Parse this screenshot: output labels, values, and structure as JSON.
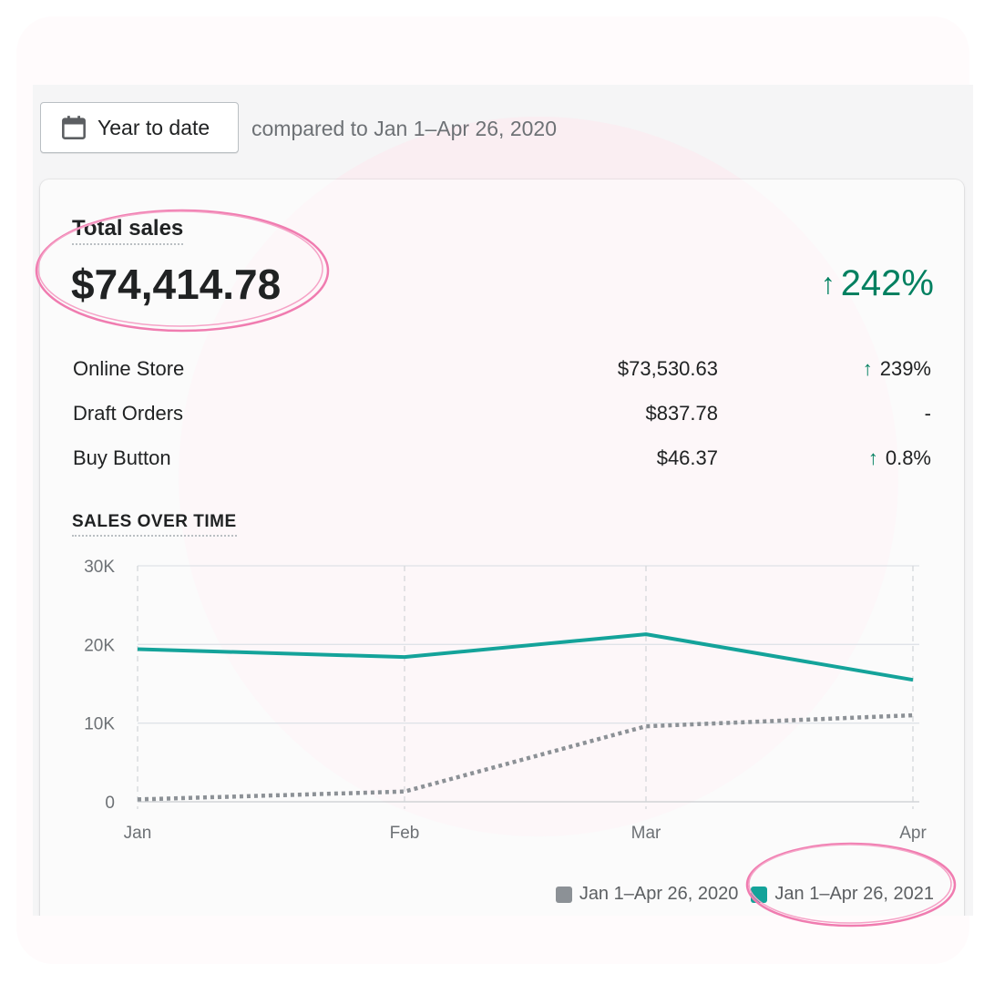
{
  "toolbar": {
    "date_range_label": "Year to date",
    "compare_text": "compared to Jan 1–Apr 26, 2020"
  },
  "summary": {
    "title": "Total sales",
    "total": "$74,414.78",
    "total_change": "242%",
    "rows": [
      {
        "name": "Online Store",
        "value": "$73,530.63",
        "change": "239%",
        "arrow": "↑"
      },
      {
        "name": "Draft Orders",
        "value": "$837.78",
        "change": "-",
        "arrow": ""
      },
      {
        "name": "Buy Button",
        "value": "$46.37",
        "change": "0.8%",
        "arrow": "↑"
      }
    ]
  },
  "section_title": "SALES OVER TIME",
  "chart_data": {
    "type": "line",
    "categories": [
      "Jan",
      "Feb",
      "Mar",
      "Apr"
    ],
    "y_ticks": [
      "0",
      "10K",
      "20K",
      "30K"
    ],
    "ylim": [
      0,
      30000
    ],
    "grid": true,
    "legend_position": "bottom-right",
    "series": [
      {
        "name": "Jan 1–Apr 26, 2020",
        "values": [
          300,
          1300,
          9600,
          11000
        ],
        "color": "#8c9196",
        "style": "dotted"
      },
      {
        "name": "Jan 1–Apr 26, 2021",
        "values": [
          19400,
          18400,
          21300,
          15500
        ],
        "color": "#14a39a",
        "style": "solid"
      }
    ]
  },
  "colors": {
    "accent_green": "#008060",
    "line_2021": "#14a39a",
    "line_2020": "#8c9196",
    "annotation_pink": "#f07cb0"
  }
}
